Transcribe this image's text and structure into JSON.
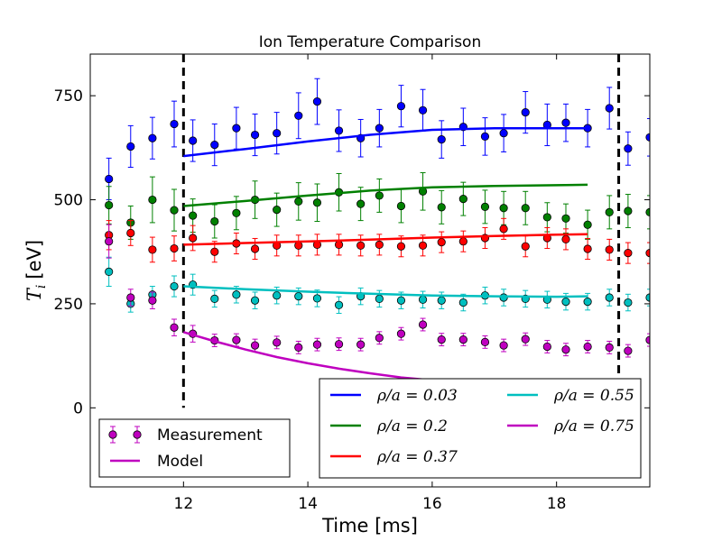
{
  "chart_data": {
    "type": "scatter",
    "title": "Ion Temperature Comparison",
    "xlabel": "Time [ms]",
    "ylabel_main": "T",
    "ylabel_sub": "i",
    "ylabel_unit": "[eV]",
    "xlim": [
      10.5,
      19.5
    ],
    "ylim": [
      -190,
      850
    ],
    "xticks": [
      12,
      14,
      16,
      18
    ],
    "yticks": [
      0,
      250,
      500,
      750
    ],
    "vlines": [
      12,
      19
    ],
    "grid": false,
    "measurement_x": [
      10.8,
      11.15,
      11.5,
      11.85,
      12.15,
      12.5,
      12.85,
      13.15,
      13.5,
      13.85,
      14.15,
      14.5,
      14.85,
      15.15,
      15.5,
      15.85,
      16.15,
      16.5,
      16.85,
      17.15,
      17.5,
      17.85,
      18.15,
      18.5,
      18.85,
      19.15,
      19.5
    ],
    "series": [
      {
        "name": "ρ/a = 0.03",
        "color": "#0000ff",
        "values": [
          550,
          628,
          648,
          682,
          642,
          632,
          672,
          656,
          660,
          702,
          736,
          666,
          648,
          672,
          725,
          715,
          645,
          675,
          652,
          660,
          710,
          680,
          685,
          672,
          720,
          623,
          650
        ],
        "errors": [
          50,
          50,
          50,
          55,
          50,
          50,
          50,
          50,
          50,
          55,
          55,
          50,
          45,
          45,
          50,
          50,
          45,
          45,
          45,
          45,
          50,
          50,
          45,
          45,
          50,
          40,
          45
        ],
        "model": [
          [
            12,
            605
          ],
          [
            13,
            622
          ],
          [
            14,
            640
          ],
          [
            15,
            656
          ],
          [
            16,
            668
          ],
          [
            17,
            672
          ],
          [
            18,
            672
          ],
          [
            18.5,
            672
          ]
        ]
      },
      {
        "name": "ρ/a = 0.2",
        "color": "#008000",
        "values": [
          487,
          445,
          500,
          475,
          462,
          448,
          468,
          500,
          476,
          496,
          493,
          518,
          490,
          510,
          485,
          520,
          482,
          502,
          483,
          480,
          480,
          458,
          455,
          440,
          470,
          473,
          470
        ],
        "errors": [
          45,
          40,
          55,
          50,
          40,
          40,
          40,
          45,
          40,
          45,
          45,
          45,
          40,
          40,
          40,
          45,
          40,
          40,
          40,
          40,
          40,
          35,
          35,
          35,
          40,
          40,
          40
        ],
        "model": [
          [
            12,
            485
          ],
          [
            13,
            497
          ],
          [
            14,
            510
          ],
          [
            15,
            522
          ],
          [
            16,
            530
          ],
          [
            17,
            533
          ],
          [
            18,
            535
          ],
          [
            18.5,
            536
          ]
        ]
      },
      {
        "name": "ρ/a = 0.37",
        "color": "#ff0000",
        "values": [
          415,
          420,
          380,
          383,
          408,
          375,
          395,
          382,
          390,
          390,
          392,
          392,
          390,
          392,
          388,
          390,
          398,
          400,
          408,
          430,
          388,
          408,
          405,
          382,
          380,
          372,
          372
        ],
        "errors": [
          35,
          30,
          30,
          30,
          30,
          25,
          25,
          25,
          25,
          25,
          25,
          25,
          25,
          25,
          25,
          25,
          25,
          25,
          25,
          25,
          25,
          25,
          25,
          25,
          25,
          25,
          25
        ],
        "model": [
          [
            12,
            392
          ],
          [
            13,
            396
          ],
          [
            14,
            400
          ],
          [
            15,
            404
          ],
          [
            16,
            409
          ],
          [
            17,
            413
          ],
          [
            18,
            416
          ],
          [
            18.5,
            417
          ]
        ]
      },
      {
        "name": "ρ/a = 0.55",
        "color": "#00bfbf",
        "values": [
          327,
          250,
          272,
          292,
          296,
          262,
          272,
          258,
          270,
          268,
          263,
          247,
          268,
          262,
          258,
          260,
          258,
          253,
          270,
          265,
          262,
          260,
          255,
          255,
          265,
          253,
          265
        ],
        "errors": [
          35,
          20,
          20,
          25,
          25,
          20,
          20,
          20,
          20,
          20,
          20,
          20,
          20,
          20,
          20,
          20,
          20,
          20,
          20,
          20,
          20,
          20,
          20,
          20,
          20,
          20,
          20
        ],
        "model": [
          [
            12,
            292
          ],
          [
            13,
            285
          ],
          [
            14,
            279
          ],
          [
            15,
            274
          ],
          [
            16,
            270
          ],
          [
            17,
            268
          ],
          [
            18,
            267
          ],
          [
            18.5,
            268
          ]
        ]
      },
      {
        "name": "ρ/a = 0.75",
        "color": "#bf00bf",
        "values": [
          400,
          265,
          258,
          193,
          178,
          162,
          163,
          150,
          157,
          145,
          152,
          153,
          152,
          168,
          178,
          200,
          164,
          164,
          158,
          150,
          165,
          147,
          140,
          147,
          145,
          137,
          163
        ],
        "errors": [
          40,
          20,
          20,
          20,
          20,
          15,
          15,
          15,
          15,
          15,
          15,
          15,
          15,
          15,
          15,
          15,
          15,
          15,
          15,
          15,
          15,
          15,
          15,
          15,
          15,
          15,
          15
        ],
        "model": [
          [
            12,
            182
          ],
          [
            12.5,
            160
          ],
          [
            13,
            140
          ],
          [
            13.5,
            122
          ],
          [
            14,
            107
          ],
          [
            14.5,
            94
          ],
          [
            15,
            83
          ],
          [
            15.5,
            73
          ],
          [
            16,
            66
          ],
          [
            16.5,
            60
          ],
          [
            17,
            57
          ],
          [
            17.5,
            56
          ],
          [
            18,
            57
          ],
          [
            18.5,
            58
          ]
        ]
      }
    ],
    "legend_markers": {
      "items": [
        {
          "label": "Measurement",
          "kind": "marker",
          "color": "#bf00bf"
        },
        {
          "label": "Model",
          "kind": "line",
          "color": "#bf00bf"
        }
      ],
      "placement": "lower-left"
    },
    "legend_series": {
      "items": [
        {
          "prefix": "ρ/a = ",
          "value": "0.03",
          "color": "#0000ff"
        },
        {
          "prefix": "ρ/a = ",
          "value": "0.2",
          "color": "#008000"
        },
        {
          "prefix": "ρ/a = ",
          "value": "0.37",
          "color": "#ff0000"
        },
        {
          "prefix": "ρ/a = ",
          "value": "0.55",
          "color": "#00bfbf"
        },
        {
          "prefix": "ρ/a = ",
          "value": "0.75",
          "color": "#bf00bf"
        }
      ],
      "placement": "lower-right"
    }
  }
}
